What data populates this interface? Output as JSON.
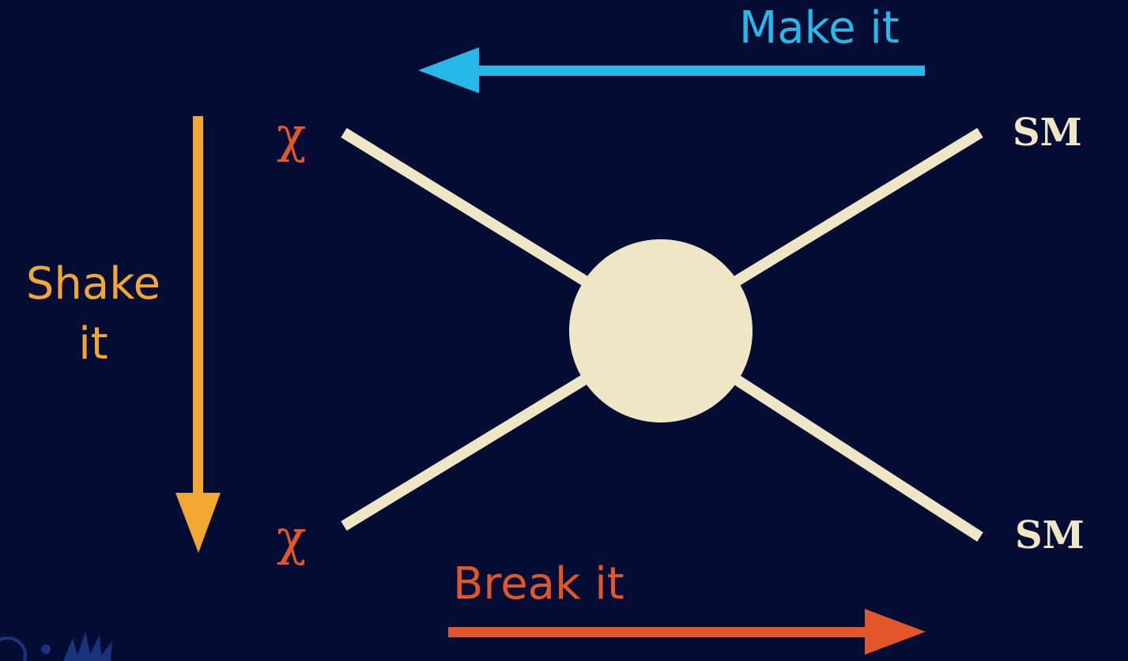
{
  "labels": {
    "make": "Make it",
    "shake": "Shake it",
    "break": "Break it"
  },
  "particles": {
    "left_top": "χ",
    "left_bottom": "χ",
    "right_top": "SM",
    "right_bottom": "SM"
  },
  "colors": {
    "background": "#050d35",
    "make": "#27b8ea",
    "shake": "#f3a733",
    "break": "#e2562a",
    "lines": "#efe6c6",
    "chi": "#e2562a",
    "sm": "#efe6c6"
  }
}
